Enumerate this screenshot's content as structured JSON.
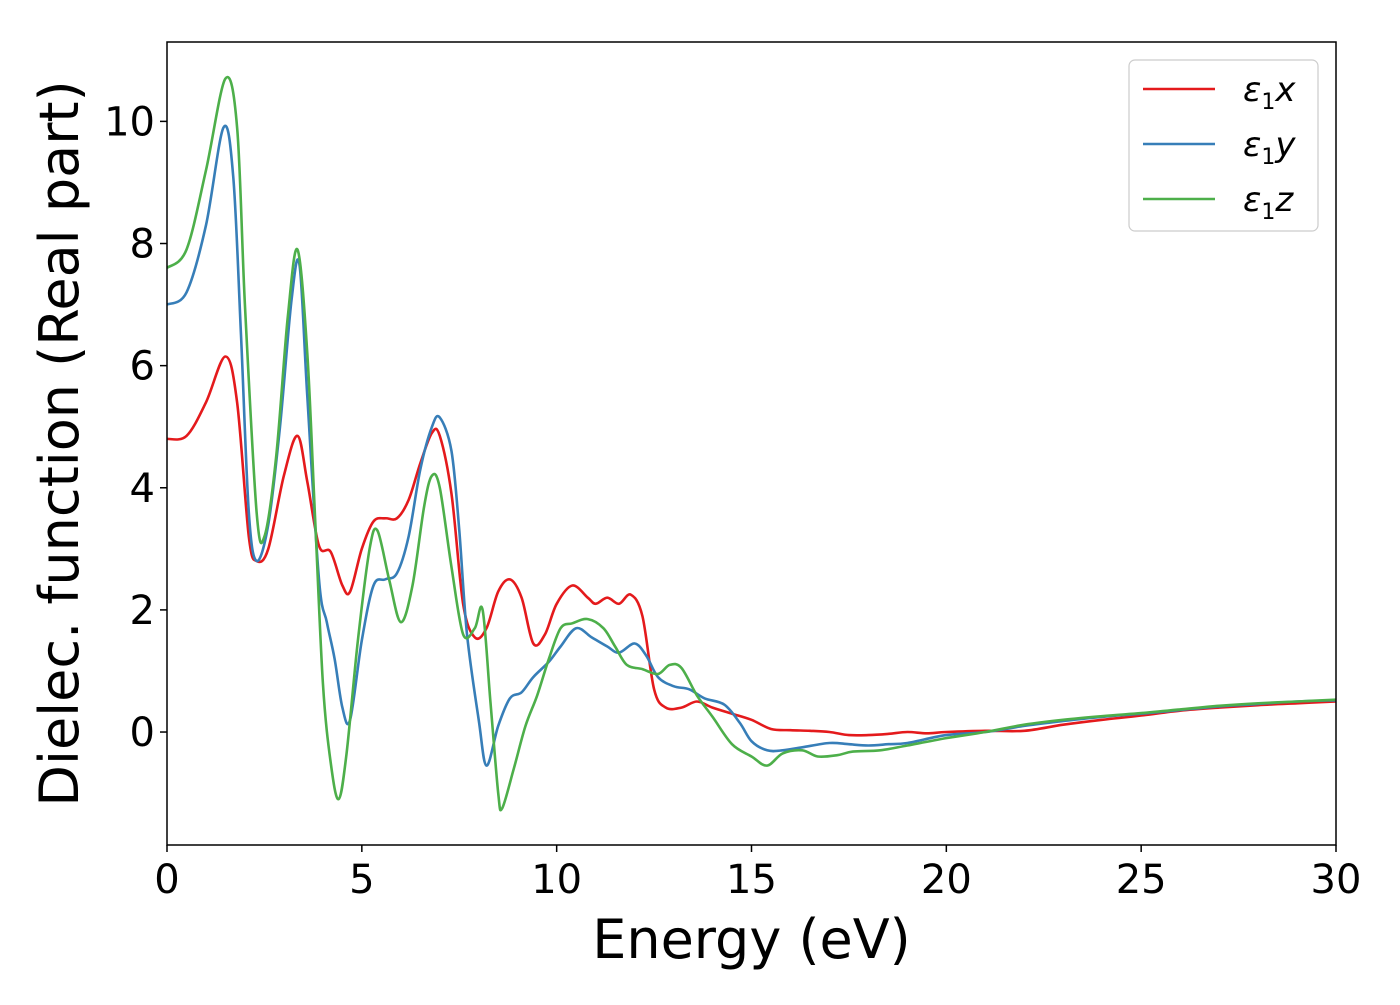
{
  "chart_data": {
    "type": "line",
    "title": "",
    "xlabel": "Energy (eV)",
    "ylabel": "Dielec. function (Real part)",
    "xlim": [
      0,
      30
    ],
    "ylim": [
      -1.85,
      11.3
    ],
    "xticks": [
      0,
      5,
      10,
      15,
      20,
      25,
      30
    ],
    "yticks": [
      0,
      2,
      4,
      6,
      8,
      10
    ],
    "xtick_labels": [
      "0",
      "5",
      "10",
      "15",
      "20",
      "25",
      "30"
    ],
    "ytick_labels": [
      "0",
      "2",
      "4",
      "6",
      "8",
      "10"
    ],
    "grid": false,
    "legend_position": "top-right",
    "legend": [
      {
        "symbol": "ε",
        "sub": "1",
        "var": "x"
      },
      {
        "symbol": "ε",
        "sub": "1",
        "var": "y"
      },
      {
        "symbol": "ε",
        "sub": "1",
        "var": "z"
      }
    ],
    "series": [
      {
        "name": "ε1x",
        "color": "#e41a1c",
        "points": [
          [
            0,
            4.8
          ],
          [
            0.5,
            4.85
          ],
          [
            1.0,
            5.4
          ],
          [
            1.5,
            6.15
          ],
          [
            1.8,
            5.4
          ],
          [
            2.1,
            3.2
          ],
          [
            2.3,
            2.8
          ],
          [
            2.6,
            3.0
          ],
          [
            3.0,
            4.2
          ],
          [
            3.35,
            4.85
          ],
          [
            3.6,
            4.1
          ],
          [
            3.9,
            3.05
          ],
          [
            4.2,
            2.95
          ],
          [
            4.5,
            2.4
          ],
          [
            4.7,
            2.3
          ],
          [
            5.0,
            3.0
          ],
          [
            5.3,
            3.45
          ],
          [
            5.6,
            3.5
          ],
          [
            5.9,
            3.5
          ],
          [
            6.2,
            3.8
          ],
          [
            6.5,
            4.4
          ],
          [
            6.8,
            4.9
          ],
          [
            7.0,
            4.85
          ],
          [
            7.3,
            3.9
          ],
          [
            7.6,
            2.1
          ],
          [
            7.9,
            1.55
          ],
          [
            8.2,
            1.7
          ],
          [
            8.5,
            2.3
          ],
          [
            8.8,
            2.5
          ],
          [
            9.1,
            2.2
          ],
          [
            9.4,
            1.45
          ],
          [
            9.7,
            1.6
          ],
          [
            10.0,
            2.1
          ],
          [
            10.4,
            2.4
          ],
          [
            10.8,
            2.2
          ],
          [
            11.0,
            2.1
          ],
          [
            11.3,
            2.2
          ],
          [
            11.6,
            2.1
          ],
          [
            11.9,
            2.25
          ],
          [
            12.2,
            1.9
          ],
          [
            12.5,
            0.7
          ],
          [
            12.8,
            0.4
          ],
          [
            13.2,
            0.4
          ],
          [
            13.6,
            0.5
          ],
          [
            14.0,
            0.4
          ],
          [
            14.5,
            0.3
          ],
          [
            15.0,
            0.2
          ],
          [
            15.5,
            0.05
          ],
          [
            16.0,
            0.03
          ],
          [
            16.5,
            0.02
          ],
          [
            17.0,
            0.0
          ],
          [
            17.5,
            -0.05
          ],
          [
            18.0,
            -0.05
          ],
          [
            18.5,
            -0.03
          ],
          [
            19.0,
            0.0
          ],
          [
            19.5,
            -0.02
          ],
          [
            20.0,
            0.0
          ],
          [
            21.0,
            0.02
          ],
          [
            22.0,
            0.02
          ],
          [
            23.0,
            0.12
          ],
          [
            24.0,
            0.2
          ],
          [
            25.0,
            0.27
          ],
          [
            26.0,
            0.35
          ],
          [
            27.0,
            0.4
          ],
          [
            28.0,
            0.44
          ],
          [
            29.0,
            0.47
          ],
          [
            30.0,
            0.5
          ]
        ]
      },
      {
        "name": "ε1y",
        "color": "#377eb8",
        "points": [
          [
            0,
            7.0
          ],
          [
            0.5,
            7.2
          ],
          [
            1.0,
            8.3
          ],
          [
            1.45,
            9.9
          ],
          [
            1.7,
            9.1
          ],
          [
            1.9,
            6.5
          ],
          [
            2.1,
            3.6
          ],
          [
            2.3,
            2.8
          ],
          [
            2.6,
            3.4
          ],
          [
            2.9,
            5.0
          ],
          [
            3.2,
            7.1
          ],
          [
            3.4,
            7.65
          ],
          [
            3.6,
            5.5
          ],
          [
            3.9,
            2.5
          ],
          [
            4.1,
            1.8
          ],
          [
            4.3,
            1.2
          ],
          [
            4.5,
            0.4
          ],
          [
            4.7,
            0.2
          ],
          [
            5.0,
            1.5
          ],
          [
            5.3,
            2.4
          ],
          [
            5.6,
            2.5
          ],
          [
            5.9,
            2.6
          ],
          [
            6.2,
            3.2
          ],
          [
            6.5,
            4.3
          ],
          [
            6.8,
            5.0
          ],
          [
            7.0,
            5.15
          ],
          [
            7.3,
            4.6
          ],
          [
            7.5,
            3.3
          ],
          [
            7.7,
            1.6
          ],
          [
            8.0,
            0.2
          ],
          [
            8.2,
            -0.55
          ],
          [
            8.5,
            0.1
          ],
          [
            8.8,
            0.55
          ],
          [
            9.1,
            0.65
          ],
          [
            9.4,
            0.9
          ],
          [
            9.8,
            1.15
          ],
          [
            10.1,
            1.4
          ],
          [
            10.5,
            1.7
          ],
          [
            10.9,
            1.55
          ],
          [
            11.3,
            1.4
          ],
          [
            11.6,
            1.3
          ],
          [
            12.0,
            1.45
          ],
          [
            12.3,
            1.25
          ],
          [
            12.6,
            0.9
          ],
          [
            13.0,
            0.75
          ],
          [
            13.4,
            0.7
          ],
          [
            13.8,
            0.55
          ],
          [
            14.3,
            0.45
          ],
          [
            14.7,
            0.15
          ],
          [
            15.0,
            -0.15
          ],
          [
            15.4,
            -0.3
          ],
          [
            15.8,
            -0.3
          ],
          [
            16.3,
            -0.25
          ],
          [
            17.0,
            -0.18
          ],
          [
            17.5,
            -0.2
          ],
          [
            18.0,
            -0.22
          ],
          [
            18.5,
            -0.2
          ],
          [
            19.0,
            -0.18
          ],
          [
            20.0,
            -0.05
          ],
          [
            21.0,
            0.0
          ],
          [
            22.0,
            0.1
          ],
          [
            23.0,
            0.18
          ],
          [
            24.0,
            0.25
          ],
          [
            25.0,
            0.3
          ],
          [
            26.0,
            0.36
          ],
          [
            27.0,
            0.42
          ],
          [
            28.0,
            0.46
          ],
          [
            29.0,
            0.5
          ],
          [
            30.0,
            0.52
          ]
        ]
      },
      {
        "name": "ε1z",
        "color": "#4daf4a",
        "points": [
          [
            0,
            7.6
          ],
          [
            0.5,
            7.9
          ],
          [
            1.0,
            9.2
          ],
          [
            1.5,
            10.7
          ],
          [
            1.8,
            9.9
          ],
          [
            2.0,
            7.0
          ],
          [
            2.3,
            3.6
          ],
          [
            2.5,
            3.2
          ],
          [
            2.8,
            4.5
          ],
          [
            3.1,
            6.8
          ],
          [
            3.35,
            7.9
          ],
          [
            3.6,
            6.2
          ],
          [
            3.8,
            3.5
          ],
          [
            4.0,
            0.8
          ],
          [
            4.2,
            -0.5
          ],
          [
            4.4,
            -1.1
          ],
          [
            4.6,
            -0.4
          ],
          [
            4.9,
            1.5
          ],
          [
            5.2,
            3.0
          ],
          [
            5.4,
            3.3
          ],
          [
            5.7,
            2.5
          ],
          [
            6.0,
            1.8
          ],
          [
            6.3,
            2.4
          ],
          [
            6.6,
            3.7
          ],
          [
            6.8,
            4.2
          ],
          [
            7.0,
            4.0
          ],
          [
            7.3,
            2.7
          ],
          [
            7.6,
            1.6
          ],
          [
            7.9,
            1.7
          ],
          [
            8.1,
            2.0
          ],
          [
            8.3,
            0.5
          ],
          [
            8.5,
            -1.0
          ],
          [
            8.6,
            -1.25
          ],
          [
            8.9,
            -0.6
          ],
          [
            9.2,
            0.1
          ],
          [
            9.5,
            0.6
          ],
          [
            9.8,
            1.2
          ],
          [
            10.1,
            1.7
          ],
          [
            10.4,
            1.78
          ],
          [
            10.8,
            1.85
          ],
          [
            11.2,
            1.7
          ],
          [
            11.5,
            1.4
          ],
          [
            11.8,
            1.1
          ],
          [
            12.2,
            1.03
          ],
          [
            12.6,
            0.95
          ],
          [
            12.9,
            1.1
          ],
          [
            13.2,
            1.05
          ],
          [
            13.6,
            0.6
          ],
          [
            14.0,
            0.25
          ],
          [
            14.5,
            -0.2
          ],
          [
            15.0,
            -0.4
          ],
          [
            15.4,
            -0.55
          ],
          [
            15.8,
            -0.35
          ],
          [
            16.3,
            -0.3
          ],
          [
            16.7,
            -0.4
          ],
          [
            17.2,
            -0.38
          ],
          [
            17.6,
            -0.32
          ],
          [
            18.3,
            -0.3
          ],
          [
            19.0,
            -0.22
          ],
          [
            20.0,
            -0.1
          ],
          [
            21.0,
            0.0
          ],
          [
            22.0,
            0.12
          ],
          [
            23.0,
            0.2
          ],
          [
            24.0,
            0.26
          ],
          [
            25.0,
            0.31
          ],
          [
            26.0,
            0.37
          ],
          [
            27.0,
            0.43
          ],
          [
            28.0,
            0.47
          ],
          [
            29.0,
            0.5
          ],
          [
            30.0,
            0.53
          ]
        ]
      }
    ]
  }
}
